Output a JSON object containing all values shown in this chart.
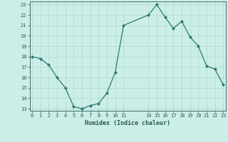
{
  "x": [
    0,
    1,
    2,
    3,
    4,
    5,
    6,
    7,
    8,
    9,
    10,
    11,
    14,
    15,
    16,
    17,
    18,
    19,
    20,
    21,
    22,
    23
  ],
  "y": [
    18.0,
    17.8,
    17.2,
    16.0,
    15.0,
    13.2,
    13.0,
    13.3,
    13.5,
    14.5,
    16.5,
    21.0,
    22.0,
    23.0,
    21.8,
    20.7,
    21.4,
    19.9,
    19.0,
    17.1,
    16.8,
    15.3
  ],
  "xlim": [
    0,
    23
  ],
  "ylim": [
    13,
    23
  ],
  "yticks": [
    13,
    14,
    15,
    16,
    17,
    18,
    19,
    20,
    21,
    22,
    23
  ],
  "xticks": [
    0,
    1,
    2,
    3,
    4,
    5,
    6,
    7,
    8,
    9,
    10,
    11,
    14,
    15,
    16,
    17,
    18,
    19,
    20,
    21,
    22,
    23
  ],
  "xlabel": "Humidex (Indice chaleur)",
  "line_color": "#2a7a6e",
  "marker_color": "#2a7a6e",
  "bg_color": "#cceee8",
  "grid_color": "#b0d8d0",
  "text_color": "#2a5a52",
  "fig_bg": "#cceee8"
}
